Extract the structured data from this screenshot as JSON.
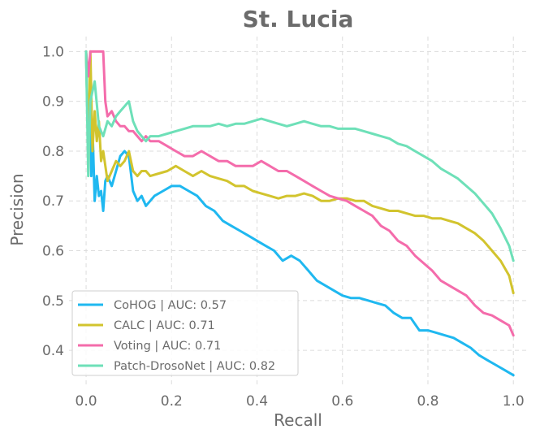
{
  "chart_data": {
    "type": "line",
    "title": "St. Lucia",
    "xlabel": "Recall",
    "ylabel": "Precision",
    "xlim": [
      -0.04,
      1.03
    ],
    "ylim": [
      0.33,
      1.03
    ],
    "xticks": [
      0.0,
      0.2,
      0.4,
      0.6,
      0.8,
      1.0
    ],
    "xtick_labels": [
      "0.0",
      "0.2",
      "0.4",
      "0.6",
      "0.8",
      "1.0"
    ],
    "yticks": [
      0.4,
      0.5,
      0.6,
      0.7,
      0.8,
      0.9,
      1.0
    ],
    "ytick_labels": [
      "0.4",
      "0.5",
      "0.6",
      "0.7",
      "0.8",
      "0.9",
      "1.0"
    ],
    "grid": true,
    "legend_position": "bottom-left",
    "series": [
      {
        "name": "CoHOG | AUC: 0.57",
        "color": "#1fb8f0",
        "x": [
          0.0,
          0.005,
          0.01,
          0.012,
          0.015,
          0.02,
          0.025,
          0.03,
          0.035,
          0.04,
          0.045,
          0.05,
          0.06,
          0.07,
          0.08,
          0.09,
          0.1,
          0.11,
          0.12,
          0.13,
          0.14,
          0.15,
          0.16,
          0.18,
          0.2,
          0.22,
          0.24,
          0.26,
          0.28,
          0.3,
          0.32,
          0.34,
          0.36,
          0.38,
          0.4,
          0.42,
          0.44,
          0.46,
          0.48,
          0.5,
          0.52,
          0.54,
          0.56,
          0.58,
          0.6,
          0.62,
          0.64,
          0.66,
          0.68,
          0.7,
          0.72,
          0.74,
          0.76,
          0.78,
          0.8,
          0.82,
          0.84,
          0.86,
          0.88,
          0.9,
          0.92,
          0.94,
          0.96,
          0.98,
          1.0
        ],
        "y": [
          1.0,
          0.8,
          0.97,
          0.75,
          0.85,
          0.7,
          0.75,
          0.71,
          0.72,
          0.68,
          0.74,
          0.75,
          0.73,
          0.76,
          0.79,
          0.8,
          0.79,
          0.72,
          0.7,
          0.71,
          0.69,
          0.7,
          0.71,
          0.72,
          0.73,
          0.73,
          0.72,
          0.71,
          0.69,
          0.68,
          0.66,
          0.65,
          0.64,
          0.63,
          0.62,
          0.61,
          0.6,
          0.58,
          0.59,
          0.58,
          0.56,
          0.54,
          0.53,
          0.52,
          0.51,
          0.505,
          0.505,
          0.5,
          0.495,
          0.49,
          0.475,
          0.465,
          0.465,
          0.44,
          0.44,
          0.435,
          0.43,
          0.425,
          0.415,
          0.405,
          0.39,
          0.38,
          0.37,
          0.36,
          0.35
        ]
      },
      {
        "name": "CALC | AUC: 0.71",
        "color": "#d2c42e",
        "x": [
          0.0,
          0.005,
          0.01,
          0.015,
          0.02,
          0.025,
          0.03,
          0.035,
          0.04,
          0.05,
          0.06,
          0.07,
          0.08,
          0.09,
          0.1,
          0.11,
          0.12,
          0.13,
          0.14,
          0.15,
          0.17,
          0.19,
          0.21,
          0.23,
          0.25,
          0.27,
          0.29,
          0.31,
          0.33,
          0.35,
          0.37,
          0.39,
          0.41,
          0.43,
          0.45,
          0.47,
          0.49,
          0.51,
          0.53,
          0.55,
          0.57,
          0.59,
          0.61,
          0.63,
          0.65,
          0.67,
          0.69,
          0.71,
          0.73,
          0.75,
          0.77,
          0.79,
          0.81,
          0.83,
          0.85,
          0.87,
          0.89,
          0.91,
          0.93,
          0.95,
          0.97,
          0.99,
          1.0
        ],
        "y": [
          1.0,
          0.8,
          1.0,
          0.8,
          0.88,
          0.82,
          0.86,
          0.78,
          0.8,
          0.74,
          0.76,
          0.78,
          0.77,
          0.78,
          0.8,
          0.76,
          0.75,
          0.76,
          0.76,
          0.75,
          0.755,
          0.76,
          0.77,
          0.76,
          0.75,
          0.76,
          0.75,
          0.745,
          0.74,
          0.73,
          0.73,
          0.72,
          0.715,
          0.71,
          0.705,
          0.71,
          0.71,
          0.715,
          0.71,
          0.7,
          0.7,
          0.705,
          0.705,
          0.7,
          0.7,
          0.69,
          0.685,
          0.68,
          0.68,
          0.675,
          0.67,
          0.67,
          0.665,
          0.665,
          0.66,
          0.655,
          0.645,
          0.635,
          0.62,
          0.6,
          0.58,
          0.55,
          0.515
        ]
      },
      {
        "name": "Voting | AUC: 0.71",
        "color": "#f46cab",
        "x": [
          0.0,
          0.005,
          0.01,
          0.015,
          0.02,
          0.03,
          0.04,
          0.045,
          0.05,
          0.06,
          0.07,
          0.08,
          0.09,
          0.1,
          0.11,
          0.12,
          0.13,
          0.14,
          0.15,
          0.17,
          0.19,
          0.21,
          0.23,
          0.25,
          0.27,
          0.29,
          0.31,
          0.33,
          0.35,
          0.37,
          0.39,
          0.41,
          0.43,
          0.45,
          0.47,
          0.49,
          0.51,
          0.53,
          0.55,
          0.57,
          0.59,
          0.61,
          0.63,
          0.65,
          0.67,
          0.69,
          0.71,
          0.73,
          0.75,
          0.77,
          0.79,
          0.81,
          0.83,
          0.85,
          0.87,
          0.89,
          0.91,
          0.93,
          0.95,
          0.97,
          0.99,
          1.0
        ],
        "y": [
          1.0,
          0.95,
          1.0,
          1.0,
          1.0,
          1.0,
          1.0,
          0.9,
          0.87,
          0.88,
          0.86,
          0.85,
          0.85,
          0.84,
          0.84,
          0.83,
          0.82,
          0.83,
          0.82,
          0.82,
          0.81,
          0.8,
          0.79,
          0.79,
          0.8,
          0.79,
          0.78,
          0.78,
          0.77,
          0.77,
          0.77,
          0.78,
          0.77,
          0.76,
          0.76,
          0.75,
          0.74,
          0.73,
          0.72,
          0.71,
          0.705,
          0.7,
          0.69,
          0.68,
          0.67,
          0.65,
          0.64,
          0.62,
          0.61,
          0.59,
          0.575,
          0.56,
          0.54,
          0.53,
          0.52,
          0.51,
          0.49,
          0.475,
          0.47,
          0.46,
          0.45,
          0.43
        ]
      },
      {
        "name": "Patch-DrosoNet | AUC: 0.82",
        "color": "#6ee0b8",
        "x": [
          0.0,
          0.005,
          0.01,
          0.015,
          0.02,
          0.03,
          0.04,
          0.05,
          0.06,
          0.07,
          0.08,
          0.09,
          0.1,
          0.11,
          0.12,
          0.13,
          0.14,
          0.15,
          0.17,
          0.19,
          0.21,
          0.23,
          0.25,
          0.27,
          0.29,
          0.31,
          0.33,
          0.35,
          0.37,
          0.39,
          0.41,
          0.43,
          0.45,
          0.47,
          0.49,
          0.51,
          0.53,
          0.55,
          0.57,
          0.59,
          0.61,
          0.63,
          0.65,
          0.67,
          0.69,
          0.71,
          0.73,
          0.75,
          0.77,
          0.79,
          0.81,
          0.83,
          0.85,
          0.87,
          0.89,
          0.91,
          0.93,
          0.95,
          0.97,
          0.99,
          1.0
        ],
        "y": [
          1.0,
          0.75,
          0.9,
          0.92,
          0.94,
          0.85,
          0.83,
          0.86,
          0.85,
          0.87,
          0.88,
          0.89,
          0.9,
          0.86,
          0.84,
          0.83,
          0.82,
          0.83,
          0.83,
          0.835,
          0.84,
          0.845,
          0.85,
          0.85,
          0.85,
          0.855,
          0.85,
          0.855,
          0.855,
          0.86,
          0.865,
          0.86,
          0.855,
          0.85,
          0.855,
          0.86,
          0.855,
          0.85,
          0.85,
          0.845,
          0.845,
          0.845,
          0.84,
          0.835,
          0.83,
          0.825,
          0.815,
          0.81,
          0.8,
          0.79,
          0.78,
          0.765,
          0.755,
          0.745,
          0.73,
          0.715,
          0.695,
          0.675,
          0.645,
          0.61,
          0.58
        ]
      }
    ]
  }
}
